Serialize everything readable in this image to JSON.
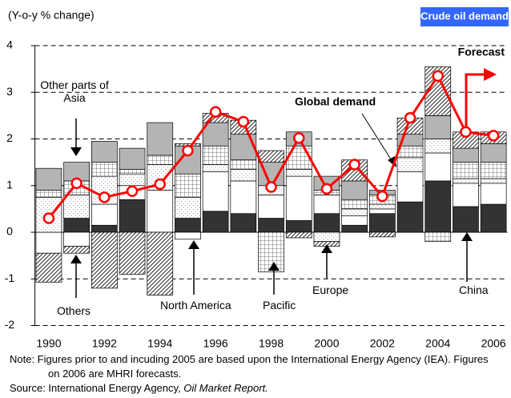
{
  "chart_data": {
    "type": "stacked_bar_line",
    "title": "Crude oil demand",
    "y_label": "(Y-o-y % change)",
    "categories": [
      "1990",
      null,
      "1992",
      null,
      "1994",
      null,
      "1996",
      null,
      "1998",
      null,
      "2000",
      null,
      "2002",
      null,
      "2004",
      null,
      "2006"
    ],
    "ylim": [
      -2,
      4
    ],
    "yticks": [
      -2,
      -1,
      0,
      1,
      2,
      3,
      4
    ],
    "grid": true,
    "series": [
      {
        "name": "China",
        "color": "#333333",
        "pattern": "solid",
        "values": [
          0,
          0.3,
          0.15,
          0.7,
          0,
          0.3,
          0.45,
          0.4,
          0.3,
          0.25,
          0.4,
          0.15,
          0.4,
          0.65,
          1.1,
          0.55,
          0.6
        ]
      },
      {
        "name": "North America",
        "color": "#ffffff",
        "pattern": "solid",
        "values": [
          -0.45,
          -0.3,
          0.45,
          0.3,
          0.9,
          -0.15,
          0.85,
          0.7,
          0.5,
          0.95,
          0.4,
          0.2,
          0.1,
          0.65,
          0.6,
          0.5,
          0.45
        ]
      },
      {
        "name": "Europe",
        "color": "#b0b0b0",
        "pattern": "dots",
        "values": [
          0.75,
          0.5,
          0.6,
          0.25,
          0.55,
          0.45,
          0.15,
          0.25,
          0.2,
          0.15,
          -0.2,
          0.15,
          0.1,
          0.3,
          0.3,
          0.1,
          0.1
        ]
      },
      {
        "name": "Pacific",
        "color": "#555555",
        "pattern": "cross",
        "values": [
          0.15,
          0.3,
          0.3,
          0.1,
          0.2,
          0.5,
          0.4,
          0.2,
          -0.85,
          0.5,
          0.1,
          0.2,
          0.2,
          0.25,
          -0.2,
          0.35,
          0.35
        ]
      },
      {
        "name": "Other parts of Asia",
        "color": "#b4b4b4",
        "pattern": "solid",
        "values": [
          0.47,
          0.4,
          0.45,
          0.45,
          0.7,
          0.6,
          0.5,
          0.55,
          0.5,
          0.3,
          0.3,
          0.4,
          0.1,
          0.25,
          0.5,
          0.3,
          0.4
        ]
      },
      {
        "name": "Others",
        "color": "#444444",
        "pattern": "diagonal",
        "values": [
          -0.62,
          -0.15,
          -1.2,
          -0.9,
          -1.35,
          0.05,
          0.2,
          0.3,
          0.25,
          -0.12,
          -0.1,
          0.45,
          -0.1,
          0.35,
          1.05,
          0.35,
          0.25
        ]
      }
    ],
    "line": {
      "name": "Global demand",
      "color": "#ff0000",
      "values": [
        0.3,
        1.05,
        0.75,
        0.88,
        1.03,
        1.75,
        2.58,
        2.37,
        0.97,
        2.02,
        0.93,
        1.45,
        0.77,
        2.45,
        3.35,
        2.15,
        2.07
      ]
    },
    "annotations": [
      "Forecast"
    ],
    "note": "Note: Figures prior to and incuding 2005 are based upon the International Energy Agency (IEA). Figures on 2006 are MHRI forecasts.",
    "source": {
      "text": "Source: International Energy Agency,",
      "italic": "Oil Market Report."
    }
  }
}
